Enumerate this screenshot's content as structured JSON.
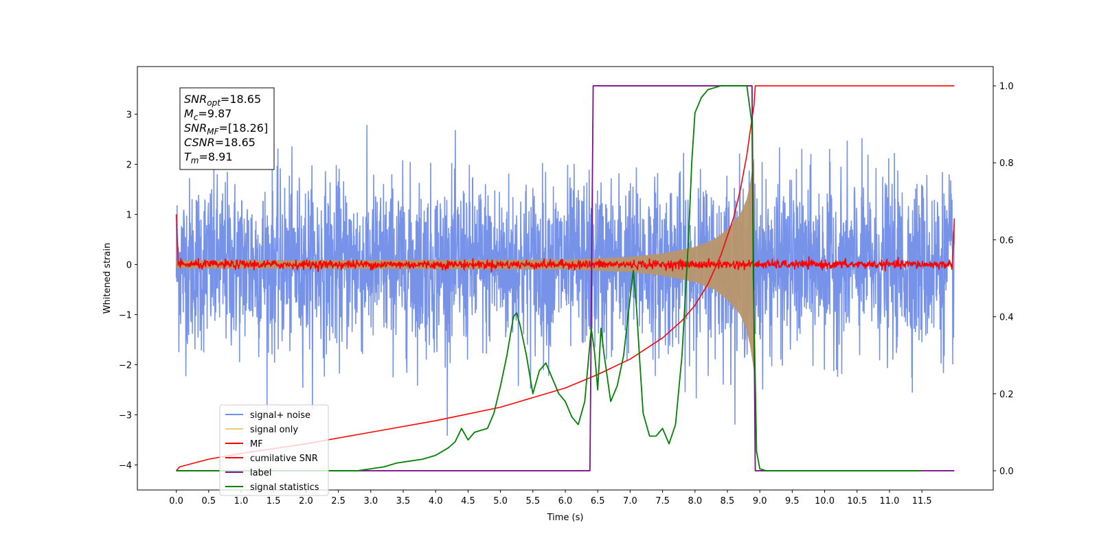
{
  "chart_data": {
    "type": "line",
    "title": "",
    "xlabel": "Time (s)",
    "ylabel": "Whitened strain",
    "xlim": [
      -0.6,
      12.6
    ],
    "ylim": [
      -4.5,
      3.95
    ],
    "y2lim": [
      -0.05,
      1.05
    ],
    "grid": false,
    "legend_position": "lower-left",
    "x_ticks": [
      0.0,
      0.5,
      1.0,
      1.5,
      2.0,
      2.5,
      3.0,
      3.5,
      4.0,
      4.5,
      5.0,
      5.5,
      6.0,
      6.5,
      7.0,
      7.5,
      8.0,
      8.5,
      9.0,
      9.5,
      10.0,
      10.5,
      11.0,
      11.5
    ],
    "x_tick_labels": [
      "0.0",
      "0.5",
      "1.0",
      "1.5",
      "2.0",
      "2.5",
      "3.0",
      "3.5",
      "4.0",
      "4.5",
      "5.0",
      "5.5",
      "6.0",
      "6.5",
      "7.0",
      "7.5",
      "8.0",
      "8.5",
      "9.0",
      "9.5",
      "10.0",
      "10.5",
      "11.0",
      "11.5"
    ],
    "y_ticks": [
      3,
      2,
      1,
      0,
      -1,
      -2,
      -3,
      -4
    ],
    "y_tick_labels": [
      "3",
      "2",
      "1",
      "0",
      "−1",
      "−2",
      "−3",
      "−4"
    ],
    "y2_ticks": [
      1.0,
      0.8,
      0.6,
      0.4,
      0.2,
      0.0
    ],
    "y2_tick_labels": [
      "1.0",
      "0.8",
      "0.6",
      "0.4",
      "0.2",
      "0.0"
    ],
    "series": [
      {
        "name": "signal+ noise",
        "color": "#6f8ce8",
        "axis": "left",
        "kind": "noise",
        "x_range": [
          0,
          12.0
        ],
        "std": 0.85
      },
      {
        "name": "signal only",
        "color": "#f5c878",
        "axis": "left",
        "kind": "chirp",
        "x_range": [
          0,
          8.91
        ],
        "envelope": {
          "x": [
            0,
            6.0,
            7.0,
            7.5,
            8.0,
            8.3,
            8.5,
            8.7,
            8.8,
            8.85,
            8.91
          ],
          "y": [
            0.08,
            0.1,
            0.15,
            0.22,
            0.35,
            0.5,
            0.7,
            1.0,
            1.3,
            1.6,
            2.1
          ]
        }
      },
      {
        "name": "MF",
        "color": "#ff0000",
        "axis": "left",
        "kind": "matched-filter",
        "x_range": [
          0,
          12.0
        ],
        "edges": {
          "start": 1.0,
          "end": 0.92
        }
      },
      {
        "name": "cumilative SNR",
        "color": "#ff0000",
        "axis": "right",
        "x": [
          0,
          0.05,
          0.5,
          1,
          2,
          3,
          4,
          5,
          5.5,
          6,
          6.5,
          7,
          7.5,
          7.8,
          8,
          8.2,
          8.4,
          8.6,
          8.7,
          8.8,
          8.85,
          8.91,
          8.93,
          12.0
        ],
        "y": [
          0.0,
          0.01,
          0.03,
          0.045,
          0.07,
          0.1,
          0.13,
          0.165,
          0.19,
          0.215,
          0.25,
          0.29,
          0.345,
          0.39,
          0.43,
          0.485,
          0.56,
          0.66,
          0.73,
          0.82,
          0.88,
          0.95,
          1.0,
          1.0
        ]
      },
      {
        "name": "label",
        "color": "#7b0f8e",
        "axis": "right",
        "x": [
          0,
          6.38,
          6.43,
          8.88,
          8.93,
          12.0
        ],
        "y": [
          0,
          0,
          1,
          1,
          0,
          0
        ]
      },
      {
        "name": "signal statistics",
        "color": "#008000",
        "axis": "right",
        "x": [
          0,
          2.8,
          3.0,
          3.2,
          3.4,
          3.6,
          3.8,
          4.0,
          4.2,
          4.3,
          4.4,
          4.5,
          4.6,
          4.8,
          4.9,
          5.0,
          5.1,
          5.2,
          5.25,
          5.3,
          5.4,
          5.5,
          5.6,
          5.7,
          5.8,
          5.9,
          6.0,
          6.1,
          6.2,
          6.3,
          6.4,
          6.45,
          6.5,
          6.55,
          6.6,
          6.7,
          6.8,
          6.9,
          7.0,
          7.05,
          7.1,
          7.15,
          7.2,
          7.3,
          7.4,
          7.5,
          7.6,
          7.7,
          7.8,
          7.9,
          7.95,
          8.0,
          8.1,
          8.2,
          8.4,
          8.6,
          8.8,
          8.88,
          8.9,
          8.95,
          9.0,
          9.1,
          11.5
        ],
        "y": [
          0,
          0,
          0.005,
          0.01,
          0.02,
          0.025,
          0.03,
          0.04,
          0.06,
          0.075,
          0.11,
          0.08,
          0.1,
          0.11,
          0.15,
          0.22,
          0.3,
          0.4,
          0.41,
          0.38,
          0.3,
          0.2,
          0.26,
          0.28,
          0.24,
          0.2,
          0.18,
          0.14,
          0.12,
          0.18,
          0.37,
          0.31,
          0.21,
          0.37,
          0.3,
          0.18,
          0.22,
          0.3,
          0.45,
          0.52,
          0.42,
          0.28,
          0.15,
          0.09,
          0.09,
          0.11,
          0.07,
          0.12,
          0.3,
          0.6,
          0.8,
          0.93,
          0.97,
          0.99,
          1.0,
          1.0,
          1.0,
          0.9,
          0.5,
          0.05,
          0.005,
          0.0,
          0.0
        ]
      }
    ],
    "annotation": [
      {
        "var": "SNR",
        "sub": "opt",
        "value": "=18.65"
      },
      {
        "var": "M",
        "sub": "c",
        "value": "=9.87"
      },
      {
        "var": "SNR",
        "sub": "MF",
        "value": "=[18.26]"
      },
      {
        "var": "CSNR",
        "sub": "",
        "value": "=18.65"
      },
      {
        "var": "T",
        "sub": "m",
        "value": "=8.91"
      }
    ]
  }
}
